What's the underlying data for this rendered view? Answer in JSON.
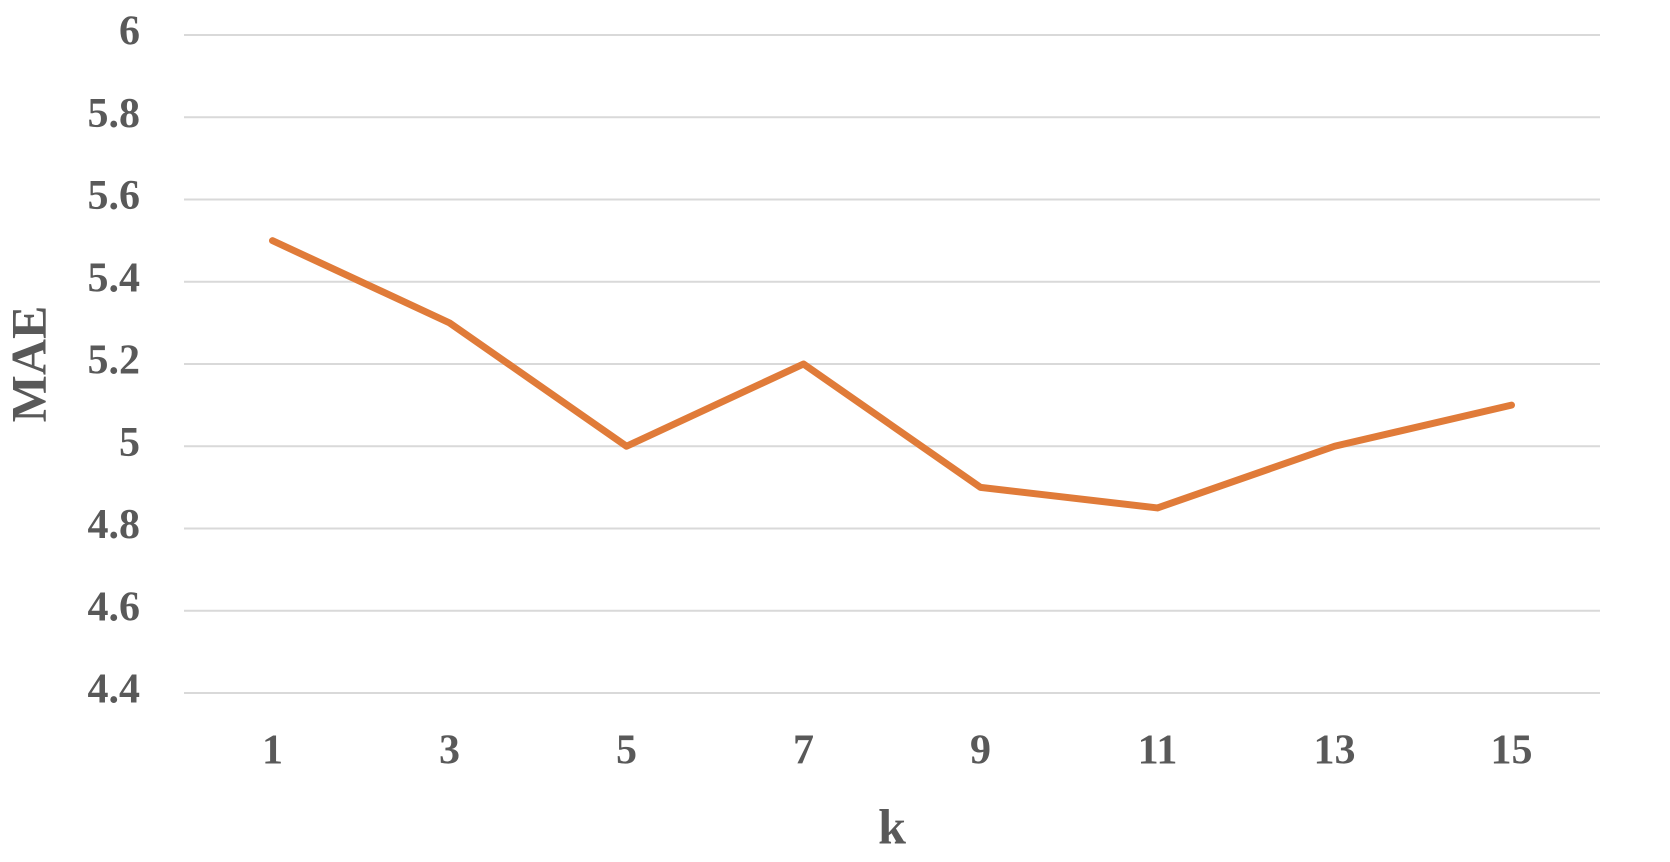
{
  "chart_data": {
    "type": "line",
    "x_label": "k",
    "y_label": "MAE",
    "categories": [
      "1",
      "3",
      "5",
      "7",
      "9",
      "11",
      "13",
      "15"
    ],
    "series": [
      {
        "name": "MAE",
        "color": "#e07b39",
        "values": [
          5.5,
          5.3,
          5.0,
          5.2,
          4.9,
          4.85,
          5.0,
          5.1
        ]
      }
    ],
    "ylim": [
      4.4,
      6
    ],
    "yticks": [
      4.4,
      4.6,
      4.8,
      5,
      5.2,
      5.4,
      5.6,
      5.8,
      6
    ],
    "grid": true
  }
}
